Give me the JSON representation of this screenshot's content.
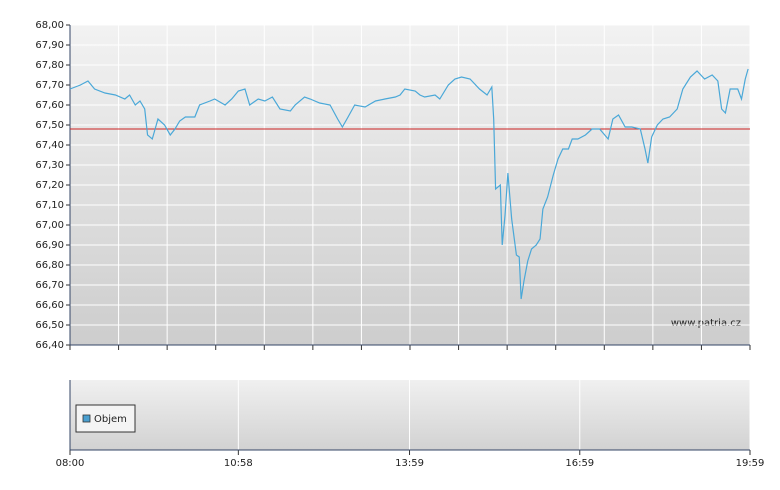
{
  "chart_data": {
    "type": "line",
    "watermark": "www.patria.cz",
    "volume_legend": "Objem",
    "volume_color": "#4a9fd0",
    "reference_value": 67.48,
    "reference_color": "#cc2222",
    "xlim": [
      "08:00",
      "19:59"
    ],
    "xticks": [
      "08:00",
      "10:58",
      "13:59",
      "16:59",
      "19:59"
    ],
    "ylim": [
      66.4,
      68.0
    ],
    "yticks": [
      {
        "value": 66.4,
        "label": "66,40"
      },
      {
        "value": 66.5,
        "label": "66,50"
      },
      {
        "value": 66.6,
        "label": "66,60"
      },
      {
        "value": 66.7,
        "label": "66,70"
      },
      {
        "value": 66.8,
        "label": "66,80"
      },
      {
        "value": 66.9,
        "label": "66,90"
      },
      {
        "value": 67.0,
        "label": "67,00"
      },
      {
        "value": 67.1,
        "label": "67,10"
      },
      {
        "value": 67.2,
        "label": "67,20"
      },
      {
        "value": 67.3,
        "label": "67,30"
      },
      {
        "value": 67.4,
        "label": "67,40"
      },
      {
        "value": 67.5,
        "label": "67,50"
      },
      {
        "value": 67.6,
        "label": "67,60"
      },
      {
        "value": 67.7,
        "label": "67,70"
      },
      {
        "value": 67.8,
        "label": "67,80"
      },
      {
        "value": 67.9,
        "label": "67,90"
      },
      {
        "value": 68.0,
        "label": "68,00"
      }
    ],
    "grid": true,
    "x": [
      "08:00",
      "08:11",
      "08:19",
      "08:26",
      "08:37",
      "08:48",
      "08:58",
      "09:03",
      "09:09",
      "09:14",
      "09:19",
      "09:22",
      "09:27",
      "09:30",
      "09:33",
      "09:40",
      "09:46",
      "09:51",
      "09:56",
      "10:02",
      "10:12",
      "10:17",
      "10:28",
      "10:33",
      "10:44",
      "10:51",
      "10:58",
      "11:05",
      "11:10",
      "11:19",
      "11:26",
      "11:34",
      "11:42",
      "11:53",
      "11:58",
      "12:08",
      "12:14",
      "12:24",
      "12:35",
      "12:43",
      "12:48",
      "12:54",
      "13:01",
      "13:12",
      "13:23",
      "13:33",
      "13:44",
      "13:49",
      "13:54",
      "14:05",
      "14:10",
      "14:15",
      "14:26",
      "14:31",
      "14:40",
      "14:47",
      "14:54",
      "15:03",
      "15:13",
      "15:21",
      "15:26",
      "15:28",
      "15:30",
      "15:35",
      "15:37",
      "15:40",
      "15:43",
      "15:47",
      "15:52",
      "15:55",
      "15:57",
      "16:00",
      "16:04",
      "16:08",
      "16:13",
      "16:17",
      "16:20",
      "16:25",
      "16:31",
      "16:36",
      "16:41",
      "16:47",
      "16:51",
      "16:57",
      "17:05",
      "17:12",
      "17:20",
      "17:29",
      "17:34",
      "17:40",
      "17:47",
      "17:54",
      "18:03",
      "18:08",
      "18:11",
      "18:15",
      "18:21",
      "18:27",
      "18:34",
      "18:42",
      "18:48",
      "18:56",
      "19:03",
      "19:11",
      "19:19",
      "19:25",
      "19:29",
      "19:33",
      "19:38",
      "19:46",
      "19:50",
      "19:54",
      "19:57"
    ],
    "series": [
      {
        "color": "#4aa8d8",
        "values": [
          67.68,
          67.7,
          67.72,
          67.68,
          67.66,
          67.65,
          67.63,
          67.65,
          67.6,
          67.62,
          67.58,
          67.45,
          67.43,
          67.48,
          67.53,
          67.5,
          67.45,
          67.48,
          67.52,
          67.54,
          67.54,
          67.6,
          67.62,
          67.63,
          67.6,
          67.63,
          67.67,
          67.68,
          67.6,
          67.63,
          67.62,
          67.64,
          67.58,
          67.57,
          67.6,
          67.64,
          67.63,
          67.61,
          67.6,
          67.53,
          67.49,
          67.54,
          67.6,
          67.59,
          67.62,
          67.63,
          67.64,
          67.65,
          67.68,
          67.67,
          67.65,
          67.64,
          67.65,
          67.63,
          67.7,
          67.73,
          67.74,
          67.73,
          67.68,
          67.65,
          67.69,
          67.53,
          67.18,
          67.2,
          66.9,
          67.05,
          67.26,
          67.03,
          66.85,
          66.84,
          66.63,
          66.72,
          66.82,
          66.88,
          66.9,
          66.93,
          67.08,
          67.14,
          67.25,
          67.33,
          67.38,
          67.38,
          67.43,
          67.43,
          67.45,
          67.48,
          67.48,
          67.43,
          67.53,
          67.55,
          67.49,
          67.49,
          67.48,
          67.38,
          67.31,
          67.44,
          67.5,
          67.53,
          67.54,
          67.58,
          67.68,
          67.74,
          67.77,
          67.73,
          67.75,
          67.72,
          67.58,
          67.56,
          67.68,
          67.68,
          67.63,
          67.73,
          67.78
        ]
      }
    ]
  }
}
